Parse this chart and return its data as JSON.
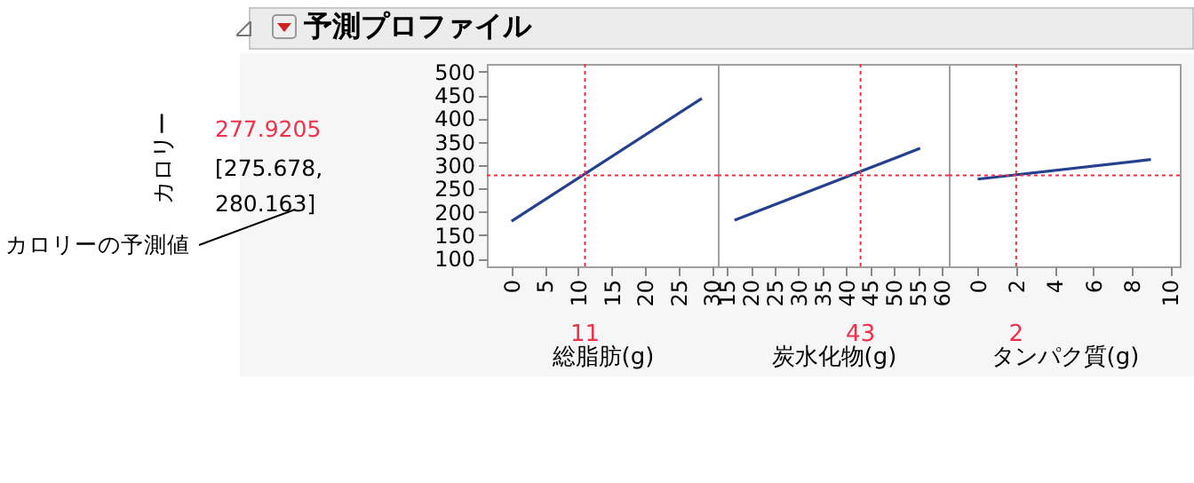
{
  "chart_data": [
    {
      "type": "line",
      "title": "予測プロファイル",
      "ylabel": "カロリー",
      "xlabel": "総脂肪(g)",
      "series": [
        {
          "color": "#25408f",
          "x": [
            0,
            28.5
          ],
          "values": [
            180,
            443
          ]
        }
      ],
      "xlim": [
        -3.7,
        30.9
      ],
      "xticks": [
        0,
        5,
        10,
        15,
        20,
        25,
        30
      ],
      "ylim": [
        83,
        517
      ],
      "yticks": [
        100,
        150,
        200,
        250,
        300,
        350,
        400,
        450,
        500
      ],
      "ref_lines": [
        {
          "axis": "x",
          "value": 11,
          "label": "11",
          "color": "#f0304a",
          "line_style": "dotted"
        },
        {
          "axis": "y",
          "value": 277.9205,
          "label": "277.9205",
          "color": "#f0304a",
          "line_style": "dotted"
        }
      ],
      "annotations": [
        "[275.678, 280.163]",
        "カロリーの予測値"
      ]
    },
    {
      "type": "line",
      "xlabel": "炭水化物(g)",
      "tick_labels": "x",
      "series": [
        {
          "color": "#25408f",
          "x": [
            16.6,
            55.5
          ],
          "values": [
            182,
            336
          ]
        }
      ],
      "xlim": [
        13.1,
        61.5
      ],
      "xticks": [
        15,
        20,
        25,
        30,
        35,
        40,
        45,
        50,
        55,
        60
      ],
      "ylim": [
        83,
        517
      ],
      "ref_lines": [
        {
          "axis": "x",
          "value": 43,
          "label": "43",
          "color": "#f0304a",
          "line_style": "dotted"
        },
        {
          "axis": "y",
          "value": 277.9205,
          "color": "#f0304a",
          "line_style": "dotted"
        }
      ]
    },
    {
      "type": "line",
      "xlabel": "タンパク質(g)",
      "tick_labels": "x",
      "series": [
        {
          "color": "#25408f",
          "x": [
            0,
            9
          ],
          "values": [
            270,
            312
          ]
        }
      ],
      "xlim": [
        -1.5,
        10.5
      ],
      "xticks": [
        0,
        2,
        4,
        6,
        8,
        10
      ],
      "ylim": [
        83,
        517
      ],
      "ref_lines": [
        {
          "axis": "x",
          "value": 2,
          "label": "2",
          "color": "#f0304a",
          "line_style": "dotted"
        },
        {
          "axis": "y",
          "value": 277.9205,
          "color": "#f0304a",
          "line_style": "dotted"
        }
      ]
    }
  ]
}
